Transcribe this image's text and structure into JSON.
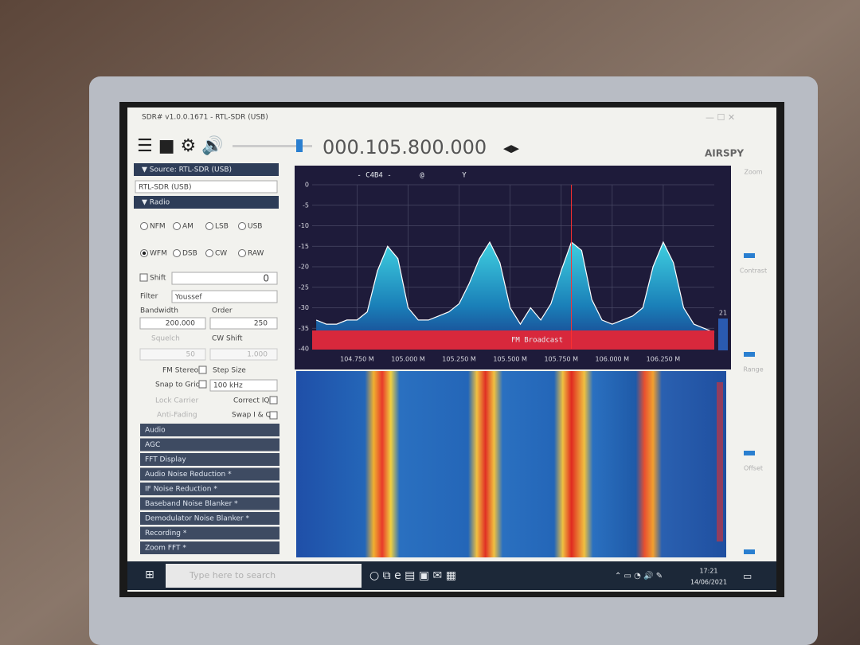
{
  "window": {
    "title": "SDR# v1.0.0.1671 - RTL-SDR (USB)"
  },
  "toolbar": {
    "frequency": "000.105.800.000",
    "logo": "AIRSPY"
  },
  "sidebar": {
    "source_header": "▼ Source: RTL-SDR (USB)",
    "source_value": "RTL-SDR (USB)",
    "radio_header": "▼ Radio",
    "modes": [
      "NFM",
      "AM",
      "LSB",
      "USB",
      "WFM",
      "DSB",
      "CW",
      "RAW"
    ],
    "selected_mode": 4,
    "shift_label": "Shift",
    "shift_value": "0",
    "filter_label": "Filter",
    "filter_value": "Youssef",
    "bandwidth_label": "Bandwidth",
    "order_label": "Order",
    "bandwidth_value": "200.000",
    "order_value": "250",
    "squelch_label": "Squelch",
    "cwshift_label": "CW Shift",
    "squelch_value": "50",
    "cwshift_value": "1.000",
    "fm_stereo": "FM Stereo",
    "step_size": "Step Size",
    "snap_to_grid": "Snap to Grid",
    "step_value": "100 kHz",
    "lock_carrier": "Lock Carrier",
    "correct_iq": "Correct IQ",
    "anti_fading": "Anti-Fading",
    "swap_iq": "Swap I & Q",
    "sections": [
      "Audio",
      "AGC",
      "FFT Display",
      "Audio Noise Reduction *",
      "IF Noise Reduction *",
      "Baseband Noise Blanker *",
      "Demodulator Noise Blanker *",
      "Recording *",
      "Zoom FFT *"
    ]
  },
  "right_controls": [
    "Zoom",
    "Contrast",
    "Range",
    "Offset"
  ],
  "chart_data": {
    "type": "line",
    "header_labels": [
      "- C4B4 -",
      "@",
      "Y"
    ],
    "band_label": "FM Broadcast",
    "side_label": 21,
    "cursor": 105.8,
    "x": [
      104.55,
      104.6,
      104.65,
      104.7,
      104.75,
      104.8,
      104.85,
      104.9,
      104.95,
      105.0,
      105.05,
      105.1,
      105.15,
      105.2,
      105.25,
      105.3,
      105.35,
      105.4,
      105.45,
      105.5,
      105.55,
      105.6,
      105.65,
      105.7,
      105.75,
      105.8,
      105.85,
      105.9,
      105.95,
      106.0,
      106.05,
      106.1,
      106.15,
      106.2,
      106.25,
      106.3,
      106.35,
      106.4,
      106.45,
      106.5
    ],
    "series": [
      {
        "color": "#ffffff",
        "values": [
          -33,
          -34,
          -34,
          -33,
          -33,
          -31,
          -21,
          -15,
          -18,
          -30,
          -33,
          -33,
          -32,
          -31,
          -29,
          -24,
          -18,
          -14,
          -19,
          -30,
          -34,
          -30,
          -33,
          -29,
          -21,
          -14,
          -16,
          -28,
          -33,
          -34,
          -33,
          -32,
          -30,
          -20,
          -14,
          -19,
          -30,
          -34,
          -35,
          -36
        ]
      }
    ],
    "xlim": [
      104.53,
      106.5
    ],
    "ylim": [
      -40,
      0
    ],
    "xticks": [
      {
        "value": 104.75,
        "label": "104.750 M"
      },
      {
        "value": 105.0,
        "label": "105.000 M"
      },
      {
        "value": 105.25,
        "label": "105.250 M"
      },
      {
        "value": 105.5,
        "label": "105.500 M"
      },
      {
        "value": 105.75,
        "label": "105.750 M"
      },
      {
        "value": 106.0,
        "label": "106.000 M"
      },
      {
        "value": 106.25,
        "label": "106.250 M"
      }
    ],
    "yticks": [
      0,
      -5,
      -10,
      -15,
      -20,
      -25,
      -30,
      -35,
      -40
    ],
    "grid": true
  },
  "taskbar": {
    "search": "Type here to search",
    "time": "17:21",
    "date": "14/06/2021"
  }
}
